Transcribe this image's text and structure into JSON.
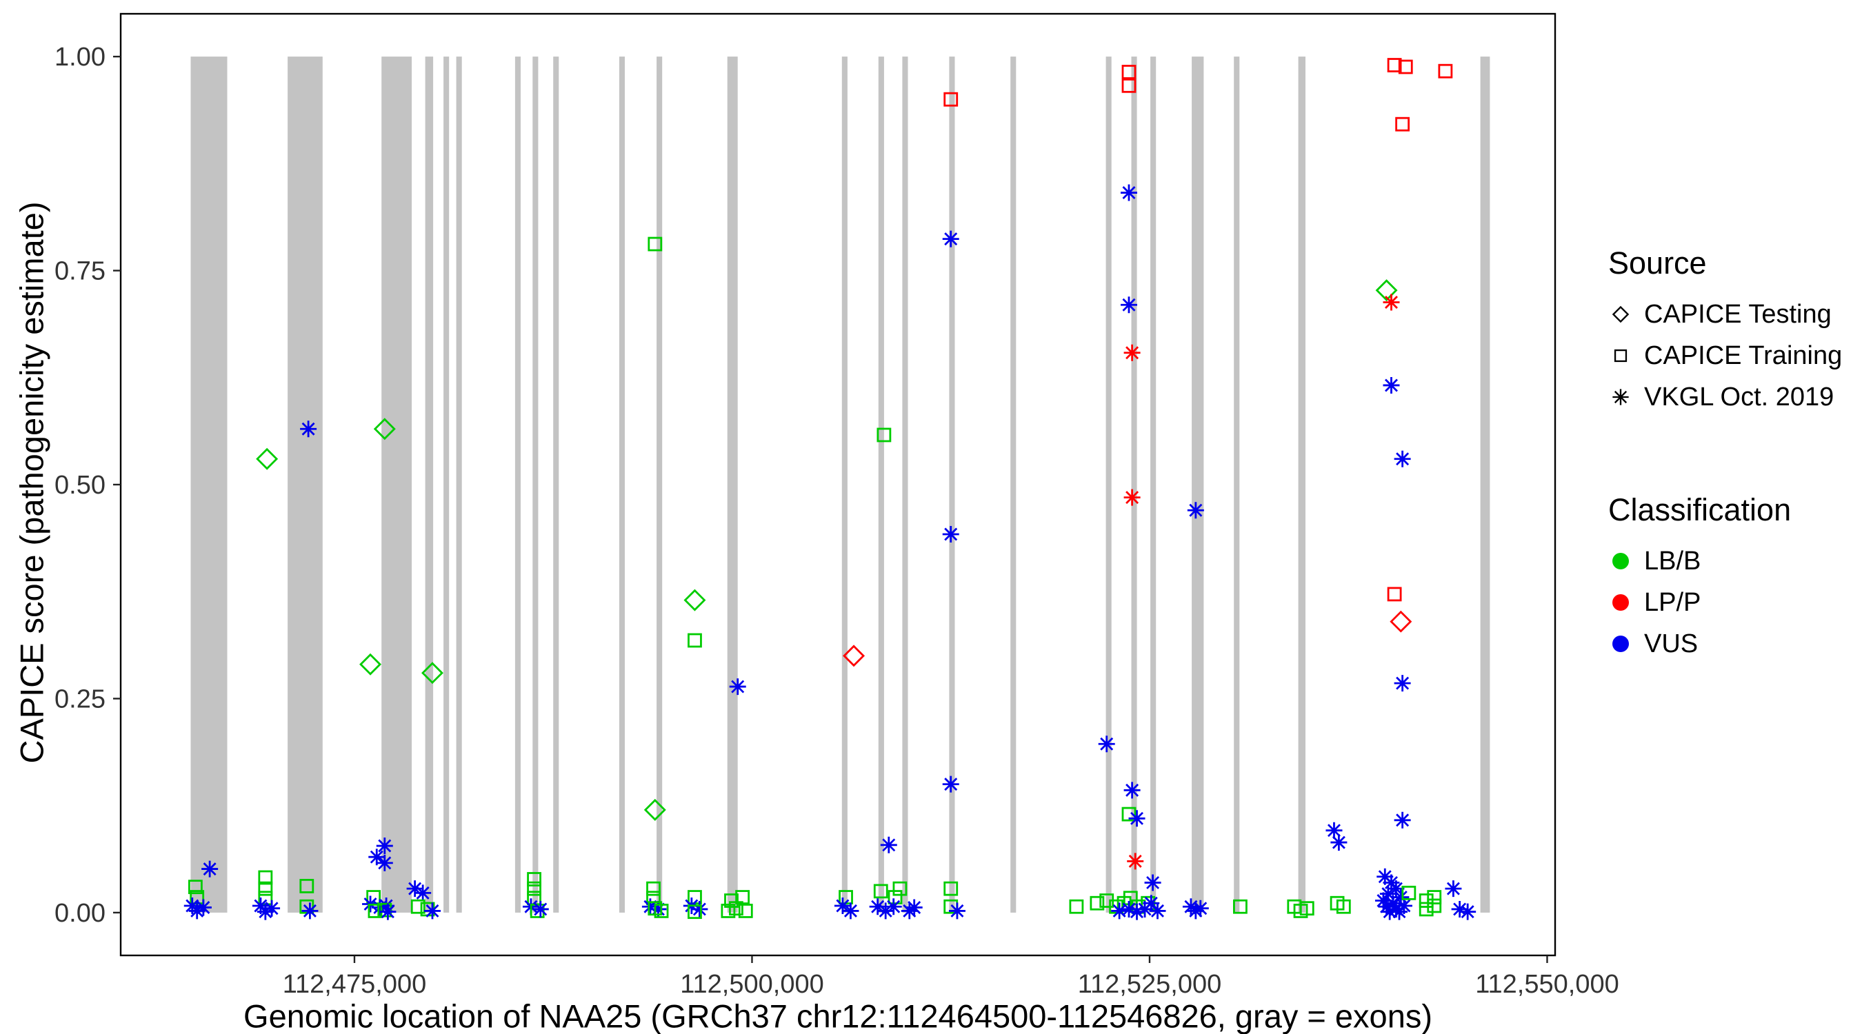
{
  "chart_data": {
    "type": "scatter",
    "title": "",
    "xlabel": "Genomic location of NAA25 (GRCh37 chr12:112464500-112546826, gray = exons)",
    "ylabel": "CAPICE score (pathogenicity estimate)",
    "x_domain": [
      112460300,
      112550500
    ],
    "y_domain": [
      -0.05,
      1.05
    ],
    "grid": "off",
    "legend_position": "right",
    "x_ticks": [
      {
        "value": 112475000,
        "label": "112,475,000"
      },
      {
        "value": 112500000,
        "label": "112,500,000"
      },
      {
        "value": 112525000,
        "label": "112,525,000"
      },
      {
        "value": 112550000,
        "label": "112,550,000"
      }
    ],
    "y_ticks": [
      {
        "value": 0.0,
        "label": "0.00"
      },
      {
        "value": 0.25,
        "label": "0.25"
      },
      {
        "value": 0.5,
        "label": "0.50"
      },
      {
        "value": 0.75,
        "label": "0.75"
      },
      {
        "value": 1.0,
        "label": "1.00"
      }
    ],
    "colors": {
      "LB": "#00CC00",
      "LP": "#FF0000",
      "VUS": "#0000EE",
      "exon": "#C3C3C3",
      "border": "#000000",
      "tick_text": "#333333"
    },
    "legend": {
      "source": {
        "title": "Source",
        "items": [
          {
            "shape": "diamond",
            "label": "CAPICE Testing"
          },
          {
            "shape": "square",
            "label": "CAPICE Training"
          },
          {
            "shape": "asterisk",
            "label": "VKGL Oct. 2019"
          }
        ]
      },
      "classification": {
        "title": "Classification",
        "items": [
          {
            "color": "#00CC00",
            "label": "LB/B"
          },
          {
            "color": "#FF0000",
            "label": "LP/P"
          },
          {
            "color": "#0000EE",
            "label": "VUS"
          }
        ]
      }
    },
    "exons": [
      [
        112464700,
        112467000
      ],
      [
        112470800,
        112473000
      ],
      [
        112476700,
        112478600
      ],
      [
        112479450,
        112479950
      ],
      [
        112480600,
        112480950
      ],
      [
        112481400,
        112481750
      ],
      [
        112485100,
        112485450
      ],
      [
        112486200,
        112486550
      ],
      [
        112487500,
        112487850
      ],
      [
        112491650,
        112492000
      ],
      [
        112494000,
        112494350
      ],
      [
        112498450,
        112499100
      ],
      [
        112505650,
        112506000
      ],
      [
        112507950,
        112508300
      ],
      [
        112509450,
        112509800
      ],
      [
        112512400,
        112512750
      ],
      [
        112516250,
        112516600
      ],
      [
        112522250,
        112522600
      ],
      [
        112523850,
        112524200
      ],
      [
        112525050,
        112525400
      ],
      [
        112527650,
        112528400
      ],
      [
        112530300,
        112530650
      ],
      [
        112534350,
        112534800
      ],
      [
        112545800,
        112546400
      ]
    ],
    "points": [
      {
        "x": 112469500,
        "y": 0.53,
        "src": "testing",
        "cls": "LB"
      },
      {
        "x": 112476900,
        "y": 0.565,
        "src": "testing",
        "cls": "LB"
      },
      {
        "x": 112476000,
        "y": 0.29,
        "src": "testing",
        "cls": "LB"
      },
      {
        "x": 112479900,
        "y": 0.28,
        "src": "testing",
        "cls": "LB"
      },
      {
        "x": 112493900,
        "y": 0.12,
        "src": "testing",
        "cls": "LB"
      },
      {
        "x": 112496400,
        "y": 0.365,
        "src": "testing",
        "cls": "LB"
      },
      {
        "x": 112506400,
        "y": 0.3,
        "src": "testing",
        "cls": "LP"
      },
      {
        "x": 112539900,
        "y": 0.727,
        "src": "testing",
        "cls": "LB"
      },
      {
        "x": 112540800,
        "y": 0.34,
        "src": "testing",
        "cls": "LP"
      },
      {
        "x": 112512500,
        "y": 0.95,
        "src": "training",
        "cls": "LP"
      },
      {
        "x": 112523700,
        "y": 0.982,
        "src": "training",
        "cls": "LP"
      },
      {
        "x": 112523700,
        "y": 0.966,
        "src": "training",
        "cls": "LP"
      },
      {
        "x": 112540400,
        "y": 0.99,
        "src": "training",
        "cls": "LP"
      },
      {
        "x": 112541100,
        "y": 0.988,
        "src": "training",
        "cls": "LP"
      },
      {
        "x": 112543600,
        "y": 0.983,
        "src": "training",
        "cls": "LP"
      },
      {
        "x": 112540900,
        "y": 0.921,
        "src": "training",
        "cls": "LP"
      },
      {
        "x": 112540400,
        "y": 0.372,
        "src": "training",
        "cls": "LP"
      },
      {
        "x": 112523900,
        "y": 0.654,
        "src": "vkgl",
        "cls": "LP"
      },
      {
        "x": 112523900,
        "y": 0.485,
        "src": "vkgl",
        "cls": "LP"
      },
      {
        "x": 112540200,
        "y": 0.713,
        "src": "vkgl",
        "cls": "LP"
      },
      {
        "x": 112524100,
        "y": 0.06,
        "src": "vkgl",
        "cls": "LP"
      },
      {
        "x": 112493900,
        "y": 0.781,
        "src": "training",
        "cls": "LB"
      },
      {
        "x": 112508300,
        "y": 0.558,
        "src": "training",
        "cls": "LB"
      },
      {
        "x": 112496400,
        "y": 0.318,
        "src": "training",
        "cls": "LB"
      },
      {
        "x": 112523700,
        "y": 0.115,
        "src": "training",
        "cls": "LB"
      },
      {
        "x": 112472100,
        "y": 0.565,
        "src": "vkgl",
        "cls": "VUS"
      },
      {
        "x": 112523700,
        "y": 0.841,
        "src": "vkgl",
        "cls": "VUS"
      },
      {
        "x": 112512500,
        "y": 0.787,
        "src": "vkgl",
        "cls": "VUS"
      },
      {
        "x": 112523700,
        "y": 0.71,
        "src": "vkgl",
        "cls": "VUS"
      },
      {
        "x": 112540200,
        "y": 0.616,
        "src": "vkgl",
        "cls": "VUS"
      },
      {
        "x": 112540900,
        "y": 0.53,
        "src": "vkgl",
        "cls": "VUS"
      },
      {
        "x": 112527900,
        "y": 0.47,
        "src": "vkgl",
        "cls": "VUS"
      },
      {
        "x": 112512500,
        "y": 0.442,
        "src": "vkgl",
        "cls": "VUS"
      },
      {
        "x": 112499100,
        "y": 0.264,
        "src": "vkgl",
        "cls": "VUS"
      },
      {
        "x": 112540900,
        "y": 0.268,
        "src": "vkgl",
        "cls": "VUS"
      },
      {
        "x": 112522300,
        "y": 0.197,
        "src": "vkgl",
        "cls": "VUS"
      },
      {
        "x": 112512500,
        "y": 0.15,
        "src": "vkgl",
        "cls": "VUS"
      },
      {
        "x": 112523900,
        "y": 0.143,
        "src": "vkgl",
        "cls": "VUS"
      },
      {
        "x": 112524200,
        "y": 0.11,
        "src": "vkgl",
        "cls": "VUS"
      },
      {
        "x": 112540900,
        "y": 0.108,
        "src": "vkgl",
        "cls": "VUS"
      },
      {
        "x": 112536600,
        "y": 0.096,
        "src": "vkgl",
        "cls": "VUS"
      },
      {
        "x": 112536900,
        "y": 0.082,
        "src": "vkgl",
        "cls": "VUS"
      },
      {
        "x": 112508600,
        "y": 0.079,
        "src": "vkgl",
        "cls": "VUS"
      },
      {
        "x": 112476900,
        "y": 0.078,
        "src": "vkgl",
        "cls": "VUS"
      },
      {
        "x": 112476900,
        "y": 0.058,
        "src": "vkgl",
        "cls": "VUS"
      },
      {
        "x": 112465900,
        "y": 0.051,
        "src": "vkgl",
        "cls": "VUS"
      },
      {
        "x": 112465000,
        "y": 0.03,
        "src": "training",
        "cls": "LB"
      },
      {
        "x": 112465100,
        "y": 0.018,
        "src": "training",
        "cls": "LB"
      },
      {
        "x": 112464800,
        "y": 0.008,
        "src": "vkgl",
        "cls": "VUS"
      },
      {
        "x": 112465500,
        "y": 0.006,
        "src": "vkgl",
        "cls": "VUS"
      },
      {
        "x": 112465100,
        "y": 0.002,
        "src": "vkgl",
        "cls": "VUS"
      },
      {
        "x": 112469400,
        "y": 0.041,
        "src": "training",
        "cls": "LB"
      },
      {
        "x": 112469400,
        "y": 0.028,
        "src": "training",
        "cls": "LB"
      },
      {
        "x": 112469400,
        "y": 0.017,
        "src": "training",
        "cls": "LB"
      },
      {
        "x": 112469100,
        "y": 0.008,
        "src": "vkgl",
        "cls": "VUS"
      },
      {
        "x": 112469800,
        "y": 0.005,
        "src": "vkgl",
        "cls": "VUS"
      },
      {
        "x": 112469400,
        "y": 0.001,
        "src": "vkgl",
        "cls": "VUS"
      },
      {
        "x": 112472000,
        "y": 0.031,
        "src": "training",
        "cls": "LB"
      },
      {
        "x": 112472000,
        "y": 0.007,
        "src": "training",
        "cls": "LB"
      },
      {
        "x": 112472200,
        "y": 0.002,
        "src": "vkgl",
        "cls": "VUS"
      },
      {
        "x": 112476400,
        "y": 0.065,
        "src": "vkgl",
        "cls": "VUS"
      },
      {
        "x": 112476200,
        "y": 0.018,
        "src": "training",
        "cls": "LB"
      },
      {
        "x": 112476000,
        "y": 0.01,
        "src": "vkgl",
        "cls": "VUS"
      },
      {
        "x": 112476600,
        "y": 0.006,
        "src": "vkgl",
        "cls": "VUS"
      },
      {
        "x": 112477000,
        "y": 0.008,
        "src": "vkgl",
        "cls": "VUS"
      },
      {
        "x": 112476300,
        "y": 0.002,
        "src": "training",
        "cls": "LB"
      },
      {
        "x": 112476900,
        "y": 0.003,
        "src": "training",
        "cls": "LB"
      },
      {
        "x": 112477100,
        "y": 0.001,
        "src": "vkgl",
        "cls": "VUS"
      },
      {
        "x": 112478800,
        "y": 0.028,
        "src": "vkgl",
        "cls": "VUS"
      },
      {
        "x": 112479300,
        "y": 0.023,
        "src": "vkgl",
        "cls": "VUS"
      },
      {
        "x": 112479000,
        "y": 0.007,
        "src": "training",
        "cls": "LB"
      },
      {
        "x": 112479600,
        "y": 0.004,
        "src": "training",
        "cls": "LB"
      },
      {
        "x": 112479900,
        "y": 0.002,
        "src": "vkgl",
        "cls": "VUS"
      },
      {
        "x": 112486300,
        "y": 0.039,
        "src": "training",
        "cls": "LB"
      },
      {
        "x": 112486300,
        "y": 0.028,
        "src": "training",
        "cls": "LB"
      },
      {
        "x": 112486300,
        "y": 0.017,
        "src": "training",
        "cls": "LB"
      },
      {
        "x": 112486100,
        "y": 0.007,
        "src": "vkgl",
        "cls": "VUS"
      },
      {
        "x": 112486500,
        "y": 0.002,
        "src": "training",
        "cls": "LB"
      },
      {
        "x": 112486700,
        "y": 0.004,
        "src": "vkgl",
        "cls": "VUS"
      },
      {
        "x": 112493800,
        "y": 0.028,
        "src": "training",
        "cls": "LB"
      },
      {
        "x": 112493800,
        "y": 0.017,
        "src": "training",
        "cls": "LB"
      },
      {
        "x": 112493600,
        "y": 0.007,
        "src": "vkgl",
        "cls": "VUS"
      },
      {
        "x": 112494100,
        "y": 0.004,
        "src": "vkgl",
        "cls": "VUS"
      },
      {
        "x": 112493900,
        "y": 0.005,
        "src": "training",
        "cls": "LB"
      },
      {
        "x": 112494300,
        "y": 0.002,
        "src": "training",
        "cls": "LB"
      },
      {
        "x": 112496400,
        "y": 0.018,
        "src": "training",
        "cls": "LB"
      },
      {
        "x": 112496200,
        "y": 0.008,
        "src": "vkgl",
        "cls": "VUS"
      },
      {
        "x": 112496700,
        "y": 0.004,
        "src": "vkgl",
        "cls": "VUS"
      },
      {
        "x": 112496400,
        "y": 0.001,
        "src": "training",
        "cls": "LB"
      },
      {
        "x": 112498700,
        "y": 0.014,
        "src": "training",
        "cls": "LB"
      },
      {
        "x": 112499400,
        "y": 0.018,
        "src": "training",
        "cls": "LB"
      },
      {
        "x": 112498500,
        "y": 0.002,
        "src": "training",
        "cls": "LB"
      },
      {
        "x": 112499000,
        "y": 0.005,
        "src": "training",
        "cls": "LB"
      },
      {
        "x": 112499600,
        "y": 0.002,
        "src": "training",
        "cls": "LB"
      },
      {
        "x": 112505900,
        "y": 0.018,
        "src": "training",
        "cls": "LB"
      },
      {
        "x": 112505700,
        "y": 0.008,
        "src": "vkgl",
        "cls": "VUS"
      },
      {
        "x": 112506200,
        "y": 0.002,
        "src": "vkgl",
        "cls": "VUS"
      },
      {
        "x": 112508100,
        "y": 0.025,
        "src": "training",
        "cls": "LB"
      },
      {
        "x": 112509300,
        "y": 0.028,
        "src": "training",
        "cls": "LB"
      },
      {
        "x": 112509000,
        "y": 0.018,
        "src": "training",
        "cls": "LB"
      },
      {
        "x": 112507900,
        "y": 0.007,
        "src": "vkgl",
        "cls": "VUS"
      },
      {
        "x": 112508400,
        "y": 0.002,
        "src": "vkgl",
        "cls": "VUS"
      },
      {
        "x": 112508900,
        "y": 0.007,
        "src": "vkgl",
        "cls": "VUS"
      },
      {
        "x": 112509900,
        "y": 0.002,
        "src": "vkgl",
        "cls": "VUS"
      },
      {
        "x": 112510200,
        "y": 0.006,
        "src": "vkgl",
        "cls": "VUS"
      },
      {
        "x": 112512500,
        "y": 0.028,
        "src": "training",
        "cls": "LB"
      },
      {
        "x": 112512500,
        "y": 0.007,
        "src": "training",
        "cls": "LB"
      },
      {
        "x": 112512900,
        "y": 0.002,
        "src": "vkgl",
        "cls": "VUS"
      },
      {
        "x": 112520400,
        "y": 0.007,
        "src": "training",
        "cls": "LB"
      },
      {
        "x": 112521700,
        "y": 0.011,
        "src": "training",
        "cls": "LB"
      },
      {
        "x": 112522300,
        "y": 0.014,
        "src": "training",
        "cls": "LB"
      },
      {
        "x": 112522900,
        "y": 0.007,
        "src": "training",
        "cls": "LB"
      },
      {
        "x": 112523400,
        "y": 0.011,
        "src": "training",
        "cls": "LB"
      },
      {
        "x": 112523800,
        "y": 0.017,
        "src": "training",
        "cls": "LB"
      },
      {
        "x": 112524300,
        "y": 0.007,
        "src": "training",
        "cls": "LB"
      },
      {
        "x": 112524900,
        "y": 0.011,
        "src": "training",
        "cls": "LB"
      },
      {
        "x": 112525200,
        "y": 0.035,
        "src": "vkgl",
        "cls": "VUS"
      },
      {
        "x": 112523100,
        "y": 0.002,
        "src": "vkgl",
        "cls": "VUS"
      },
      {
        "x": 112523700,
        "y": 0.004,
        "src": "vkgl",
        "cls": "VUS"
      },
      {
        "x": 112524200,
        "y": 0.001,
        "src": "vkgl",
        "cls": "VUS"
      },
      {
        "x": 112524700,
        "y": 0.004,
        "src": "vkgl",
        "cls": "VUS"
      },
      {
        "x": 112525100,
        "y": 0.011,
        "src": "vkgl",
        "cls": "VUS"
      },
      {
        "x": 112525500,
        "y": 0.002,
        "src": "vkgl",
        "cls": "VUS"
      },
      {
        "x": 112527600,
        "y": 0.007,
        "src": "vkgl",
        "cls": "VUS"
      },
      {
        "x": 112527900,
        "y": 0.002,
        "src": "vkgl",
        "cls": "VUS"
      },
      {
        "x": 112528200,
        "y": 0.005,
        "src": "vkgl",
        "cls": "VUS"
      },
      {
        "x": 112530700,
        "y": 0.007,
        "src": "training",
        "cls": "LB"
      },
      {
        "x": 112534100,
        "y": 0.007,
        "src": "training",
        "cls": "LB"
      },
      {
        "x": 112534500,
        "y": 0.002,
        "src": "training",
        "cls": "LB"
      },
      {
        "x": 112534900,
        "y": 0.005,
        "src": "training",
        "cls": "LB"
      },
      {
        "x": 112536800,
        "y": 0.011,
        "src": "training",
        "cls": "LB"
      },
      {
        "x": 112537200,
        "y": 0.007,
        "src": "training",
        "cls": "LB"
      },
      {
        "x": 112539800,
        "y": 0.042,
        "src": "vkgl",
        "cls": "VUS"
      },
      {
        "x": 112540200,
        "y": 0.035,
        "src": "vkgl",
        "cls": "VUS"
      },
      {
        "x": 112540500,
        "y": 0.028,
        "src": "vkgl",
        "cls": "VUS"
      },
      {
        "x": 112540000,
        "y": 0.022,
        "src": "vkgl",
        "cls": "VUS"
      },
      {
        "x": 112540800,
        "y": 0.018,
        "src": "vkgl",
        "cls": "VUS"
      },
      {
        "x": 112539700,
        "y": 0.014,
        "src": "vkgl",
        "cls": "VUS"
      },
      {
        "x": 112540300,
        "y": 0.011,
        "src": "vkgl",
        "cls": "VUS"
      },
      {
        "x": 112539900,
        "y": 0.007,
        "src": "vkgl",
        "cls": "VUS"
      },
      {
        "x": 112540500,
        "y": 0.004,
        "src": "vkgl",
        "cls": "VUS"
      },
      {
        "x": 112541000,
        "y": 0.008,
        "src": "vkgl",
        "cls": "VUS"
      },
      {
        "x": 112540100,
        "y": 0.001,
        "src": "vkgl",
        "cls": "VUS"
      },
      {
        "x": 112540700,
        "y": 0.001,
        "src": "vkgl",
        "cls": "VUS"
      },
      {
        "x": 112541300,
        "y": 0.023,
        "src": "training",
        "cls": "LB"
      },
      {
        "x": 112542400,
        "y": 0.014,
        "src": "training",
        "cls": "LB"
      },
      {
        "x": 112542900,
        "y": 0.018,
        "src": "training",
        "cls": "LB"
      },
      {
        "x": 112542400,
        "y": 0.004,
        "src": "training",
        "cls": "LB"
      },
      {
        "x": 112542900,
        "y": 0.008,
        "src": "training",
        "cls": "LB"
      },
      {
        "x": 112544100,
        "y": 0.028,
        "src": "vkgl",
        "cls": "VUS"
      },
      {
        "x": 112544500,
        "y": 0.004,
        "src": "vkgl",
        "cls": "VUS"
      },
      {
        "x": 112545000,
        "y": 0.001,
        "src": "vkgl",
        "cls": "VUS"
      }
    ]
  }
}
